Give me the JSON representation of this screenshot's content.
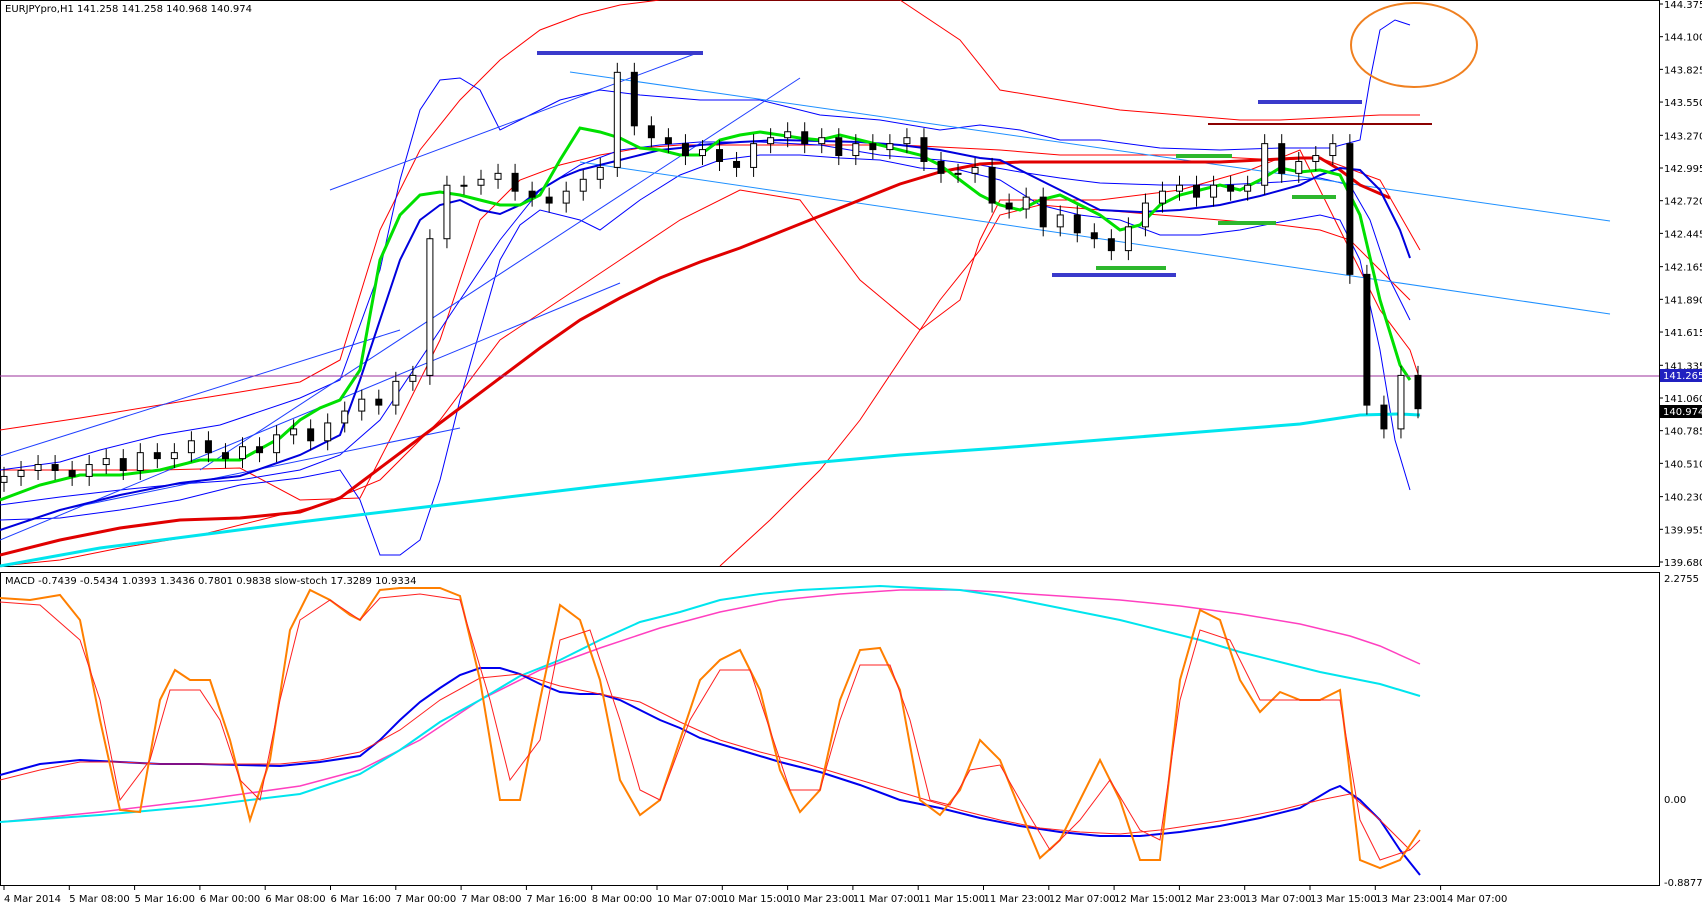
{
  "window": {
    "symbol_caption": "EURJPYpro,H1  141.258 141.258 140.968 140.974"
  },
  "indicator_caption": "MACD -0.7439 -0.5434 1.0393 1.3436 0.7801 0.9838  slow-stoch 17.3289 10.9334",
  "colors": {
    "background": "#ffffff",
    "bollinger_outer": "#ff0000",
    "bollinger_inner": "#0000ff",
    "ma_fast": "#00e000",
    "ma_blue": "#0000dd",
    "ma_red": "#e00000",
    "ma_cyan": "#00e5ee",
    "channel": "#1e90ff",
    "stoch": "#ff7f00",
    "macd_signal_pink": "#ff40c0",
    "circle": "#f08020",
    "bid_line": "#9b309b",
    "bid_tag": "#2020c0",
    "last_tag": "#000000"
  },
  "price_tags": {
    "bid": "141.265",
    "last": "140.974"
  },
  "chart_data": [
    {
      "type": "candlestick",
      "symbol": "EURJPYpro",
      "timeframe": "H1",
      "ylim": [
        139.68,
        144.375
      ],
      "y_ticks": [
        "144.375",
        "144.100",
        "143.825",
        "143.550",
        "143.270",
        "142.995",
        "142.720",
        "142.445",
        "142.165",
        "141.890",
        "141.615",
        "141.335",
        "141.060",
        "140.785",
        "140.510",
        "140.230",
        "139.955",
        "139.680"
      ],
      "x_tick_labels": [
        "4 Mar 2014",
        "5 Mar 08:00",
        "5 Mar 16:00",
        "6 Mar 00:00",
        "6 Mar 08:00",
        "6 Mar 16:00",
        "7 Mar 00:00",
        "7 Mar 08:00",
        "7 Mar 16:00",
        "8 Mar 00:00",
        "10 Mar 07:00",
        "10 Mar 15:00",
        "10 Mar 23:00",
        "11 Mar 07:00",
        "11 Mar 15:00",
        "11 Mar 23:00",
        "12 Mar 07:00",
        "12 Mar 15:00",
        "12 Mar 23:00",
        "13 Mar 07:00",
        "13 Mar 15:00",
        "13 Mar 23:00",
        "14 Mar 07:00"
      ],
      "close_series": [
        140.4,
        140.45,
        140.5,
        140.45,
        140.4,
        140.5,
        140.55,
        140.45,
        140.6,
        140.55,
        140.6,
        140.7,
        140.6,
        140.55,
        140.65,
        140.6,
        140.75,
        140.8,
        140.7,
        140.85,
        140.95,
        141.05,
        141.0,
        141.2,
        141.25,
        142.4,
        142.85,
        142.85,
        142.9,
        142.95,
        142.8,
        142.75,
        142.7,
        142.8,
        142.9,
        143.0,
        143.8,
        143.35,
        143.25,
        143.2,
        143.1,
        143.15,
        143.05,
        143.0,
        143.2,
        143.25,
        143.3,
        143.2,
        143.25,
        143.1,
        143.2,
        143.15,
        143.2,
        143.25,
        143.05,
        142.95,
        142.95,
        143.0,
        142.7,
        142.65,
        142.75,
        142.5,
        142.6,
        142.45,
        142.4,
        142.3,
        142.5,
        142.7,
        142.8,
        142.85,
        142.75,
        142.85,
        142.8,
        142.85,
        143.2,
        142.95,
        143.05,
        143.1,
        143.2,
        142.1,
        141.0,
        140.8,
        141.25,
        140.97
      ],
      "band_labels": []
    },
    {
      "type": "line",
      "panel": "indicator",
      "ylim": [
        -0.8877,
        2.2755
      ],
      "y_ticks": [
        "2.2755",
        "0.00",
        "-0.8877"
      ],
      "macd_values": [
        -0.7439,
        -0.5434,
        1.0393,
        1.3436,
        0.7801,
        0.9838
      ],
      "stochastic_values": [
        17.3289,
        10.9334
      ]
    }
  ]
}
